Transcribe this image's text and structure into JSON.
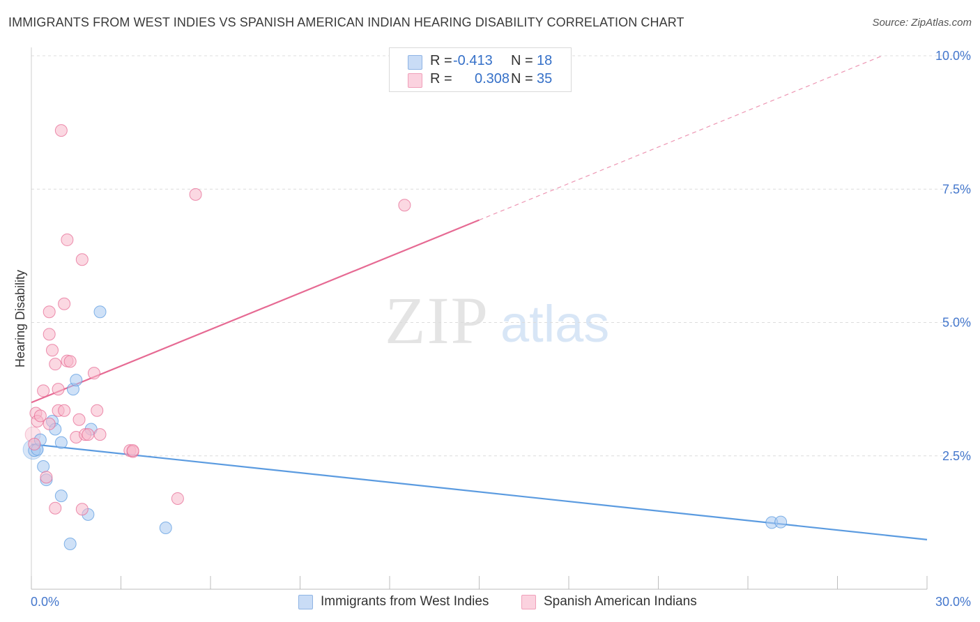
{
  "title": "IMMIGRANTS FROM WEST INDIES VS SPANISH AMERICAN INDIAN HEARING DISABILITY CORRELATION CHART",
  "source": "Source: ZipAtlas.com",
  "watermark": {
    "zip": "ZIP",
    "atlas": "atlas"
  },
  "legend_top": [
    {
      "r_label": "R =",
      "r_value": "-0.413",
      "n_label": "N =",
      "n_value": "18",
      "color": "#a8c8f0"
    },
    {
      "r_label": "R =",
      "r_value": "0.308",
      "n_label": "N =",
      "n_value": "35",
      "color": "#f7b8cb"
    }
  ],
  "legend_bottom": [
    {
      "label": "Immigrants from West Indies",
      "color": "#a8c8f0"
    },
    {
      "label": "Spanish American Indians",
      "color": "#f7b8cb"
    }
  ],
  "chart_data": {
    "type": "scatter",
    "title": "IMMIGRANTS FROM WEST INDIES VS SPANISH AMERICAN INDIAN HEARING DISABILITY CORRELATION CHART",
    "xlabel": "",
    "ylabel": "Hearing Disability",
    "xlim": [
      0,
      30
    ],
    "ylim": [
      0,
      10
    ],
    "x_tick_labels": [
      "0.0%",
      "30.0%"
    ],
    "y_ticks": [
      2.5,
      5.0,
      7.5,
      10.0
    ],
    "y_tick_labels": [
      "2.5%",
      "5.0%",
      "7.5%",
      "10.0%"
    ],
    "grid": true,
    "series": [
      {
        "name": "Immigrants from West Indies",
        "color": "#5b9be0",
        "fill": "#a8c8f0",
        "trend": {
          "x0": 0,
          "y0": 2.72,
          "x1": 30,
          "y1": 0.93,
          "solid_until": 30
        },
        "points": [
          [
            0.1,
            2.6
          ],
          [
            0.2,
            2.62
          ],
          [
            0.3,
            2.8
          ],
          [
            0.4,
            2.3
          ],
          [
            0.5,
            2.05
          ],
          [
            0.7,
            3.15
          ],
          [
            0.8,
            3.0
          ],
          [
            1.0,
            1.75
          ],
          [
            1.0,
            2.75
          ],
          [
            1.3,
            0.85
          ],
          [
            1.4,
            3.75
          ],
          [
            1.5,
            3.92
          ],
          [
            1.9,
            1.4
          ],
          [
            2.0,
            3.0
          ],
          [
            2.3,
            5.2
          ],
          [
            4.5,
            1.15
          ],
          [
            24.8,
            1.25
          ],
          [
            25.1,
            1.26
          ]
        ]
      },
      {
        "name": "Spanish American Indians",
        "color": "#e66a93",
        "fill": "#f7b8cb",
        "trend": {
          "x0": 0,
          "y0": 3.5,
          "x1": 28.5,
          "y1": 10.0,
          "solid_until": 15
        },
        "points": [
          [
            0.1,
            2.72
          ],
          [
            0.15,
            3.3
          ],
          [
            0.2,
            3.15
          ],
          [
            0.3,
            3.25
          ],
          [
            0.4,
            3.72
          ],
          [
            0.5,
            2.1
          ],
          [
            0.6,
            4.78
          ],
          [
            0.6,
            5.2
          ],
          [
            0.6,
            3.1
          ],
          [
            0.7,
            4.48
          ],
          [
            0.8,
            4.22
          ],
          [
            0.8,
            1.52
          ],
          [
            0.9,
            3.35
          ],
          [
            0.9,
            3.75
          ],
          [
            1.0,
            8.6
          ],
          [
            1.1,
            5.35
          ],
          [
            1.1,
            3.35
          ],
          [
            1.2,
            4.28
          ],
          [
            1.2,
            6.55
          ],
          [
            1.3,
            4.27
          ],
          [
            1.5,
            2.85
          ],
          [
            1.6,
            3.18
          ],
          [
            1.7,
            6.18
          ],
          [
            1.7,
            1.5
          ],
          [
            1.8,
            2.9
          ],
          [
            1.9,
            2.9
          ],
          [
            2.1,
            4.05
          ],
          [
            2.2,
            3.35
          ],
          [
            2.3,
            2.9
          ],
          [
            3.3,
            2.6
          ],
          [
            3.4,
            2.58
          ],
          [
            3.4,
            2.6
          ],
          [
            4.9,
            1.7
          ],
          [
            5.5,
            7.4
          ],
          [
            12.5,
            7.2
          ]
        ]
      }
    ]
  }
}
